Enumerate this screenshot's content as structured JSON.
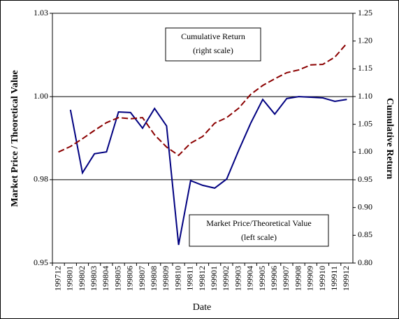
{
  "chart_data": {
    "type": "line",
    "y_label": "Market Price / Theoretical Value",
    "y2_label": "Cumulative Return",
    "x_label": "Date",
    "categories": [
      "199712",
      "199801",
      "199802",
      "199803",
      "199804",
      "199805",
      "199806",
      "199807",
      "199808",
      "199809",
      "199810",
      "199811",
      "199812",
      "199901",
      "199902",
      "199903",
      "199904",
      "199905",
      "199906",
      "199907",
      "199908",
      "199909",
      "199910",
      "199911",
      "199912"
    ],
    "series": [
      {
        "color": "#000080",
        "dashed": false,
        "axis": "y",
        "values": [
          null,
          0.9991,
          0.9789,
          0.985,
          0.9856,
          0.9984,
          0.9982,
          0.9932,
          0.9995,
          0.9939,
          0.9558,
          0.9764,
          0.9749,
          0.974,
          0.9769,
          0.9861,
          0.9948,
          1.0024,
          0.9977,
          1.0027,
          1.0033,
          1.0031,
          1.0029,
          1.0018,
          1.0024
        ]
      },
      {
        "color": "#8b0000",
        "dashed": true,
        "axis": "y2",
        "values": [
          1.0,
          1.01,
          1.024,
          1.039,
          1.053,
          1.062,
          1.06,
          1.062,
          1.031,
          1.009,
          0.994,
          1.016,
          1.028,
          1.052,
          1.062,
          1.079,
          1.104,
          1.12,
          1.132,
          1.143,
          1.148,
          1.157,
          1.158,
          1.171,
          1.196
        ]
      }
    ],
    "ylim": [
      0.95,
      1.03
    ],
    "yticks": [
      0.95,
      {
        "value": 0.9767,
        "label": "0.98"
      },
      {
        "value": 1.0033,
        "label": "1.00"
      },
      1.03
    ],
    "y2lim": [
      0.8,
      1.25
    ],
    "y2ticks": [
      {
        "value": 0.8,
        "label": "0.80"
      },
      {
        "value": 0.85,
        "label": "0.85"
      },
      {
        "value": 0.9,
        "label": "0.90"
      },
      {
        "value": 0.95,
        "label": "0.95"
      },
      {
        "value": 1.0,
        "label": "1.00"
      },
      {
        "value": 1.05,
        "label": "1.05"
      },
      {
        "value": 1.1,
        "label": "1.10"
      },
      {
        "value": 1.15,
        "label": "1.15"
      },
      {
        "value": 1.2,
        "label": "1.20"
      },
      {
        "value": 1.25,
        "label": "1.25"
      }
    ],
    "grid": true,
    "annotations": [
      {
        "lines": [
          "Cumulative Return",
          "(right scale)"
        ]
      },
      {
        "lines": [
          "Market Price/Theoretical Value",
          "(left scale)"
        ]
      }
    ]
  }
}
